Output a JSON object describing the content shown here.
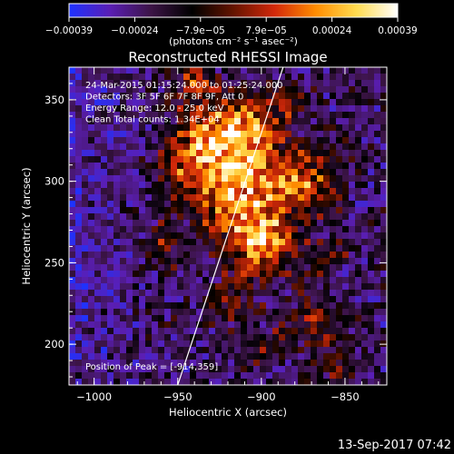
{
  "chart_data": {
    "type": "heatmap",
    "title": "Reconstructed RHESSI Image",
    "xlabel": "Heliocentric X (arcsec)",
    "ylabel": "Heliocentric Y (arcsec)",
    "xlim": [
      -1015,
      -825
    ],
    "ylim": [
      175,
      370
    ],
    "x_ticks": [
      -1000,
      -950,
      -900,
      -850
    ],
    "x_tick_labels": [
      "−1000",
      "−950",
      "−900",
      "−850"
    ],
    "y_ticks": [
      200,
      250,
      300,
      350
    ],
    "y_tick_labels": [
      "200",
      "250",
      "300",
      "350"
    ],
    "grid": false,
    "colorbar": {
      "range": [
        -0.00039,
        0.00039
      ],
      "tick_labels": [
        "−0.00039",
        "−0.00024",
        "−7.9e−05",
        "7.9e−05",
        "0.00024",
        "0.00039"
      ],
      "units_label": "(photons cm⁻² s⁻¹ asec⁻²)",
      "colors": [
        "#1e32ff",
        "#5a1eb4",
        "#3c1446",
        "#000000",
        "#641400",
        "#d2280a",
        "#ff8c00",
        "#ffdc50",
        "#ffffff"
      ]
    },
    "annotations": [
      "24-Mar-2015 01:15:24.000 to 01:25:24.000",
      "Detectors: 3F 5F 6F 7F 8F 9F, Att 0",
      "Energy Range: 12.0 - 25.0 keV",
      "Clean      Total counts: 1.34E+04"
    ],
    "peak_label": "Position of Peak = [-914,359]",
    "peak_position": [
      -914,
      359
    ],
    "limb_line": [
      [
        -950,
        175
      ],
      [
        -887,
        370
      ]
    ],
    "footer": "13-Sep-2017 07:42"
  }
}
